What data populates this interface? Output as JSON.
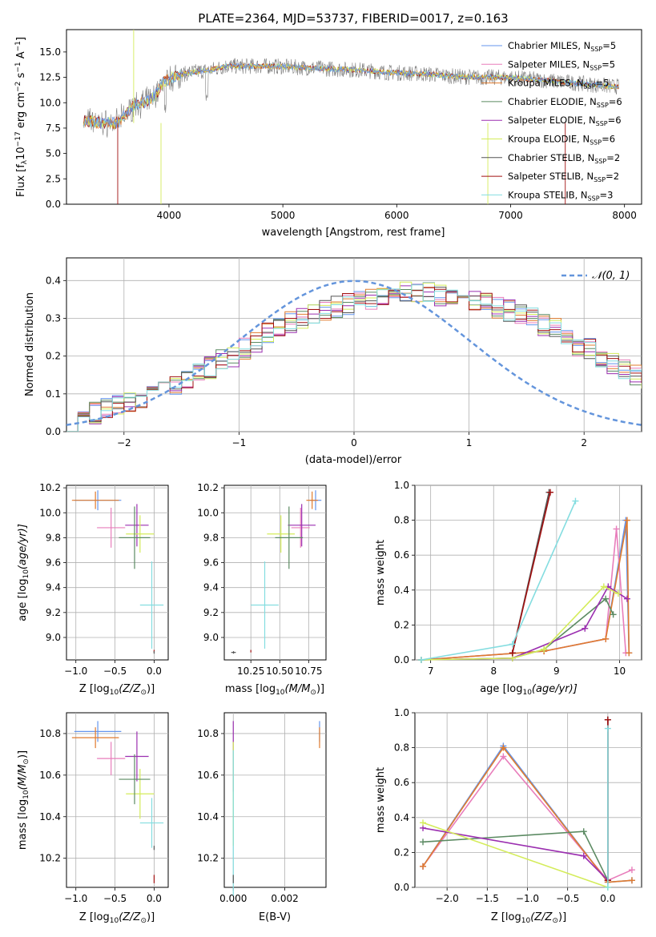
{
  "colors": {
    "chabrier_miles": "#6495ed",
    "salpeter_miles": "#e87dbb",
    "kroupa_miles": "#e07b2e",
    "chabrier_elodie": "#5b8a62",
    "salpeter_elodie": "#9b2fb0",
    "kroupa_elodie": "#d4ec5a",
    "chabrier_stelib": "#555555",
    "salpeter_stelib": "#a01010",
    "kroupa_stelib": "#84dde0",
    "observed": "#808080",
    "normal": "#6495dc"
  },
  "chart_data": [
    {
      "id": "spectrum",
      "type": "line",
      "title": "PLATE=2364, MJD=53737, FIBERID=0017, z=0.163",
      "xlabel": "wavelength [Angstrom, rest frame]",
      "ylabel": "Flux [f",
      "ylabel_sub": "λ",
      "ylabel_rest": "10",
      "ylabel_exp": "−17",
      "ylabel_units": " erg cm",
      "ylabel_units_exp": "−2",
      "ylabel_tail": " s",
      "ylabel_tail_exp": "−1",
      "ylabel_end": " A",
      "ylabel_end_exp": "−1",
      "ylabel_close": "]",
      "xlim": [
        3100,
        8150
      ],
      "ylim": [
        0,
        17.2
      ],
      "xticks": [
        "4000",
        "5000",
        "6000",
        "7000",
        "8000"
      ],
      "xtick_values": [
        4000,
        5000,
        6000,
        7000,
        8000
      ],
      "yticks": [
        "0.0",
        "2.5",
        "5.0",
        "7.5",
        "10.0",
        "12.5",
        "15.0"
      ],
      "ytick_values": [
        0,
        2.5,
        5,
        7.5,
        10,
        12.5,
        15
      ],
      "continuum": {
        "x": [
          3250,
          3400,
          3550,
          3700,
          3850,
          3950,
          4050,
          4200,
          4350,
          4500,
          4700,
          4900,
          5100,
          5300,
          5500,
          5700,
          5900,
          6100,
          6300,
          6500,
          6700,
          6900,
          7100,
          7300,
          7500,
          7700,
          7900
        ],
        "y": [
          8.3,
          8.0,
          8.0,
          9.8,
          10.3,
          12.0,
          12.6,
          13.0,
          13.2,
          13.6,
          13.6,
          13.6,
          13.5,
          13.4,
          13.3,
          13.2,
          13.0,
          12.9,
          12.8,
          12.6,
          12.5,
          12.5,
          12.4,
          12.2,
          12.0,
          11.8,
          11.6
        ]
      },
      "legend": [
        {
          "label": "Chabrier MILES, N",
          "sub": "SSP",
          "tail": "=5",
          "color_key": "chabrier_miles"
        },
        {
          "label": "Salpeter MILES, N",
          "sub": "SSP",
          "tail": "=5",
          "color_key": "salpeter_miles"
        },
        {
          "label": "Kroupa MILES, N",
          "sub": "SSP",
          "tail": "=5",
          "color_key": "kroupa_miles"
        },
        {
          "label": "Chabrier ELODIE, N",
          "sub": "SSP",
          "tail": "=6",
          "color_key": "chabrier_elodie"
        },
        {
          "label": "Salpeter ELODIE, N",
          "sub": "SSP",
          "tail": "=6",
          "color_key": "salpeter_elodie"
        },
        {
          "label": "Kroupa ELODIE, N",
          "sub": "SSP",
          "tail": "=6",
          "color_key": "kroupa_elodie"
        },
        {
          "label": "Chabrier STELIB, N",
          "sub": "SSP",
          "tail": "=2",
          "color_key": "chabrier_stelib"
        },
        {
          "label": "Salpeter STELIB, N",
          "sub": "SSP",
          "tail": "=2",
          "color_key": "salpeter_stelib"
        },
        {
          "label": "Kroupa STELIB, N",
          "sub": "SSP",
          "tail": "=3",
          "color_key": "kroupa_stelib"
        }
      ]
    },
    {
      "id": "residuals",
      "type": "line",
      "xlabel": "(data-model)/error",
      "ylabel": "Normed distribution",
      "xlim": [
        -2.5,
        2.5
      ],
      "ylim": [
        0,
        0.46
      ],
      "xticks": [
        "−2",
        "−1",
        "0",
        "1",
        "2"
      ],
      "xtick_values": [
        -2,
        -1,
        0,
        1,
        2
      ],
      "yticks": [
        "0.0",
        "0.1",
        "0.2",
        "0.3",
        "0.4"
      ],
      "ytick_values": [
        0,
        0.1,
        0.2,
        0.3,
        0.4
      ],
      "legend_label": "𝒩(0, 1)",
      "bin_width": 0.1,
      "bins_start": -2.5,
      "base_profile": [
        0.03,
        0.04,
        0.05,
        0.06,
        0.07,
        0.08,
        0.09,
        0.1,
        0.11,
        0.12,
        0.13,
        0.15,
        0.17,
        0.19,
        0.2,
        0.22,
        0.24,
        0.26,
        0.27,
        0.29,
        0.3,
        0.31,
        0.32,
        0.33,
        0.34,
        0.35,
        0.35,
        0.36,
        0.36,
        0.37,
        0.37,
        0.37,
        0.36,
        0.36,
        0.35,
        0.35,
        0.34,
        0.33,
        0.32,
        0.31,
        0.3,
        0.28,
        0.27,
        0.25,
        0.23,
        0.22,
        0.2,
        0.18,
        0.16,
        0.15,
        0.14,
        0.13,
        0.12,
        0.11,
        0.1,
        0.09,
        0.08,
        0.07,
        0.06,
        0.05
      ]
    },
    {
      "id": "age_vs_Z",
      "type": "scatter",
      "xlabel": "Z [log",
      "xlabel_sub": "10",
      "xlabel_mid": "(Z/Z",
      "xlabel_sub2": "⊙",
      "xlabel_end": ")]",
      "ylabel": "age  [log",
      "ylabel_sub": "10",
      "ylabel_end": "(age/yr)]",
      "xlim": [
        -1.12,
        0.18
      ],
      "ylim": [
        8.82,
        10.22
      ],
      "xticks": [
        "−1.0",
        "−0.5",
        "0.0"
      ],
      "xtick_values": [
        -1.0,
        -0.5,
        0.0
      ],
      "yticks": [
        "9.0",
        "9.2",
        "9.4",
        "9.6",
        "9.8",
        "10.0",
        "10.2"
      ],
      "ytick_values": [
        9.0,
        9.2,
        9.4,
        9.6,
        9.8,
        10.0,
        10.2
      ],
      "points": [
        {
          "c": "chabrier_miles",
          "x": -0.72,
          "y": 10.1,
          "ex": 0.3,
          "ey": 0.08
        },
        {
          "c": "kroupa_miles",
          "x": -0.75,
          "y": 10.1,
          "ex": 0.3,
          "ey": 0.07
        },
        {
          "c": "salpeter_miles",
          "x": -0.55,
          "y": 9.88,
          "ex": 0.18,
          "ey": 0.16
        },
        {
          "c": "salpeter_elodie",
          "x": -0.22,
          "y": 9.9,
          "ex": 0.15,
          "ey": 0.17
        },
        {
          "c": "kroupa_elodie",
          "x": -0.18,
          "y": 9.83,
          "ex": 0.18,
          "ey": 0.15
        },
        {
          "c": "chabrier_elodie",
          "x": -0.25,
          "y": 9.8,
          "ex": 0.2,
          "ey": 0.25
        },
        {
          "c": "kroupa_stelib",
          "x": -0.03,
          "y": 9.26,
          "ex": 0.15,
          "ey": 0.35
        },
        {
          "c": "salpeter_stelib",
          "x": 0.0,
          "y": 8.89,
          "ex": 0.0,
          "ey": 0.01
        },
        {
          "c": "chabrier_stelib",
          "x": 0.0,
          "y": 8.88,
          "ex": 0.0,
          "ey": 0.01
        }
      ]
    },
    {
      "id": "age_vs_mass",
      "type": "scatter",
      "xlabel": "mass [log",
      "xlabel_sub": "10",
      "xlabel_mid": "(M/M",
      "xlabel_sub2": "⊙",
      "xlabel_end": ")]",
      "xlim": [
        10.02,
        10.9
      ],
      "ylim": [
        8.82,
        10.22
      ],
      "xticks": [
        "10.25",
        "10.50",
        "10.75"
      ],
      "xtick_values": [
        10.25,
        10.5,
        10.75
      ],
      "yticks": [
        "9.0",
        "9.2",
        "9.4",
        "9.6",
        "9.8",
        "10.0",
        "10.2"
      ],
      "ytick_values": [
        9.0,
        9.2,
        9.4,
        9.6,
        9.8,
        10.0,
        10.2
      ],
      "points": [
        {
          "c": "chabrier_miles",
          "x": 10.81,
          "y": 10.1,
          "ex": 0.05,
          "ey": 0.08
        },
        {
          "c": "kroupa_miles",
          "x": 10.78,
          "y": 10.1,
          "ex": 0.05,
          "ey": 0.07
        },
        {
          "c": "salpeter_miles",
          "x": 10.68,
          "y": 9.88,
          "ex": 0.08,
          "ey": 0.16
        },
        {
          "c": "salpeter_elodie",
          "x": 10.69,
          "y": 9.9,
          "ex": 0.12,
          "ey": 0.17
        },
        {
          "c": "kroupa_elodie",
          "x": 10.51,
          "y": 9.83,
          "ex": 0.12,
          "ey": 0.15
        },
        {
          "c": "chabrier_elodie",
          "x": 10.58,
          "y": 9.8,
          "ex": 0.12,
          "ey": 0.25
        },
        {
          "c": "kroupa_stelib",
          "x": 10.37,
          "y": 9.26,
          "ex": 0.12,
          "ey": 0.35
        },
        {
          "c": "salpeter_stelib",
          "x": 10.25,
          "y": 8.89,
          "ex": 0.0,
          "ey": 0.01
        },
        {
          "c": "chabrier_stelib",
          "x": 10.1,
          "y": 8.88,
          "ex": 0.02,
          "ey": 0.01
        }
      ]
    },
    {
      "id": "massweight_vs_age",
      "type": "line",
      "xlabel": "age  [log",
      "xlabel_sub": "10",
      "xlabel_end": "(age/yr)]",
      "ylabel": "mass weight",
      "xlim": [
        6.75,
        10.35
      ],
      "ylim": [
        0,
        1.0
      ],
      "xticks": [
        "7",
        "8",
        "9",
        "10"
      ],
      "xtick_values": [
        7,
        8,
        9,
        10
      ],
      "yticks": [
        "0.0",
        "0.2",
        "0.4",
        "0.6",
        "0.8",
        "1.0"
      ],
      "ytick_values": [
        0,
        0.2,
        0.4,
        0.6,
        0.8,
        1.0
      ],
      "series": [
        {
          "c": "chabrier_miles",
          "x": [
            6.85,
            8.8,
            9.78,
            10.1,
            10.15
          ],
          "y": [
            0.0,
            0.05,
            0.12,
            0.8,
            0.04
          ]
        },
        {
          "c": "salpeter_miles",
          "x": [
            6.85,
            8.8,
            9.78,
            9.95,
            10.1
          ],
          "y": [
            0.0,
            0.05,
            0.12,
            0.75,
            0.04
          ]
        },
        {
          "c": "kroupa_miles",
          "x": [
            6.85,
            8.8,
            9.78,
            10.12,
            10.15
          ],
          "y": [
            0.0,
            0.05,
            0.12,
            0.8,
            0.04
          ]
        },
        {
          "c": "chabrier_elodie",
          "x": [
            6.85,
            8.3,
            8.8,
            9.78,
            9.9
          ],
          "y": [
            0.0,
            0.01,
            0.06,
            0.35,
            0.26
          ]
        },
        {
          "c": "salpeter_elodie",
          "x": [
            6.85,
            8.3,
            9.45,
            9.82,
            10.12
          ],
          "y": [
            0.0,
            0.01,
            0.18,
            0.42,
            0.35
          ]
        },
        {
          "c": "kroupa_elodie",
          "x": [
            6.85,
            8.3,
            8.8,
            9.75,
            9.98
          ],
          "y": [
            0.0,
            0.01,
            0.06,
            0.42,
            0.38
          ]
        },
        {
          "c": "chabrier_stelib",
          "x": [
            8.3,
            8.88
          ],
          "y": [
            0.04,
            0.96
          ]
        },
        {
          "c": "salpeter_stelib",
          "x": [
            8.3,
            8.9
          ],
          "y": [
            0.04,
            0.96
          ]
        },
        {
          "c": "kroupa_stelib",
          "x": [
            6.85,
            8.3,
            9.3
          ],
          "y": [
            0.0,
            0.09,
            0.91
          ]
        }
      ]
    },
    {
      "id": "mass_vs_Z",
      "type": "scatter",
      "xlabel": "Z [log",
      "xlabel_sub": "10",
      "xlabel_mid": "(Z/Z",
      "xlabel_sub2": "⊙",
      "xlabel_end": ")]",
      "ylabel": "mass [log",
      "ylabel_sub": "10",
      "ylabel_mid": "(M/M",
      "ylabel_sub2": "⊙",
      "ylabel_end": ")]",
      "xlim": [
        -1.12,
        0.18
      ],
      "ylim": [
        10.06,
        10.9
      ],
      "xticks": [
        "−1.0",
        "−0.5",
        "0.0"
      ],
      "xtick_values": [
        -1.0,
        -0.5,
        0.0
      ],
      "yticks": [
        "10.2",
        "10.4",
        "10.6",
        "10.8"
      ],
      "ytick_values": [
        10.2,
        10.4,
        10.6,
        10.8
      ],
      "points": [
        {
          "c": "chabrier_miles",
          "x": -0.72,
          "y": 10.81,
          "ex": 0.3,
          "ey": 0.05
        },
        {
          "c": "kroupa_miles",
          "x": -0.75,
          "y": 10.78,
          "ex": 0.3,
          "ey": 0.05
        },
        {
          "c": "salpeter_miles",
          "x": -0.55,
          "y": 10.68,
          "ex": 0.18,
          "ey": 0.08
        },
        {
          "c": "salpeter_elodie",
          "x": -0.22,
          "y": 10.69,
          "ex": 0.15,
          "ey": 0.12
        },
        {
          "c": "kroupa_elodie",
          "x": -0.18,
          "y": 10.51,
          "ex": 0.18,
          "ey": 0.12
        },
        {
          "c": "chabrier_elodie",
          "x": -0.25,
          "y": 10.58,
          "ex": 0.2,
          "ey": 0.12
        },
        {
          "c": "kroupa_stelib",
          "x": -0.03,
          "y": 10.37,
          "ex": 0.15,
          "ey": 0.12
        },
        {
          "c": "chabrier_stelib",
          "x": 0.0,
          "y": 10.25,
          "ex": 0.0,
          "ey": 0.01
        },
        {
          "c": "salpeter_stelib",
          "x": 0.0,
          "y": 10.1,
          "ex": 0.0,
          "ey": 0.02
        }
      ]
    },
    {
      "id": "mass_vs_ebv",
      "type": "scatter",
      "xlabel": "E(B-V)",
      "xlim": [
        -0.00035,
        0.0036
      ],
      "ylim": [
        10.06,
        10.9
      ],
      "xticks": [
        "0.000",
        "0.002"
      ],
      "xtick_values": [
        0.0,
        0.002
      ],
      "yticks": [
        "10.2",
        "10.4",
        "10.6",
        "10.8"
      ],
      "ytick_values": [
        10.2,
        10.4,
        10.6,
        10.8
      ],
      "points": [
        {
          "c": "chabrier_miles",
          "x": 0.00335,
          "y": 10.81,
          "ex": 0.0,
          "ey": 0.05
        },
        {
          "c": "kroupa_miles",
          "x": 0.00335,
          "y": 10.78,
          "ex": 0.0,
          "ey": 0.05
        },
        {
          "c": "salpeter_elodie",
          "x": 0.0,
          "y": 10.69,
          "ex": 0.0,
          "ey": 0.17
        },
        {
          "c": "kroupa_elodie",
          "x": 0.0,
          "y": 10.51,
          "ex": 0.0,
          "ey": 0.25
        },
        {
          "c": "kroupa_stelib",
          "x": 0.0,
          "y": 10.37,
          "ex": 0.0,
          "ey": 0.35
        },
        {
          "c": "chabrier_stelib",
          "x": 0.0,
          "y": 10.1,
          "ex": 0.0,
          "ey": 0.02
        }
      ]
    },
    {
      "id": "massweight_vs_Z",
      "type": "line",
      "xlabel": "Z [log",
      "xlabel_sub": "10",
      "xlabel_mid": "(Z/Z",
      "xlabel_sub2": "⊙",
      "xlabel_end": ")]",
      "ylabel": "mass weight",
      "xlim": [
        -2.4,
        0.42
      ],
      "ylim": [
        0,
        1.0
      ],
      "xticks": [
        "−2.0",
        "−1.5",
        "−1.0",
        "−0.5",
        "0.0"
      ],
      "xtick_values": [
        -2.0,
        -1.5,
        -1.0,
        -0.5,
        0.0
      ],
      "yticks": [
        "0.0",
        "0.2",
        "0.4",
        "0.6",
        "0.8",
        "1.0"
      ],
      "ytick_values": [
        0,
        0.2,
        0.4,
        0.6,
        0.8,
        1.0
      ],
      "series": [
        {
          "c": "chabrier_miles",
          "x": [
            -2.3,
            -1.3,
            0.0,
            0.3
          ],
          "y": [
            0.12,
            0.81,
            0.03,
            0.04
          ]
        },
        {
          "c": "salpeter_miles",
          "x": [
            -2.3,
            -1.3,
            0.0,
            0.3
          ],
          "y": [
            0.12,
            0.75,
            0.04,
            0.1
          ]
        },
        {
          "c": "kroupa_miles",
          "x": [
            -2.3,
            -1.3,
            0.0,
            0.3
          ],
          "y": [
            0.12,
            0.8,
            0.03,
            0.04
          ]
        },
        {
          "c": "chabrier_elodie",
          "x": [
            -2.3,
            -0.3,
            0.0
          ],
          "y": [
            0.26,
            0.32,
            0.04
          ]
        },
        {
          "c": "salpeter_elodie",
          "x": [
            -2.3,
            -0.3,
            0.0
          ],
          "y": [
            0.34,
            0.18,
            0.04
          ]
        },
        {
          "c": "kroupa_elodie",
          "x": [
            -2.3,
            0.0
          ],
          "y": [
            0.37,
            0.0
          ]
        },
        {
          "c": "chabrier_stelib",
          "x": [
            0.0,
            0.0
          ],
          "y": [
            0.04,
            0.96
          ]
        },
        {
          "c": "salpeter_stelib",
          "x": [
            0.0,
            0.0
          ],
          "y": [
            0.04,
            0.96
          ]
        },
        {
          "c": "kroupa_stelib",
          "x": [
            0.0,
            0.0
          ],
          "y": [
            0.0,
            0.91
          ]
        }
      ]
    }
  ]
}
